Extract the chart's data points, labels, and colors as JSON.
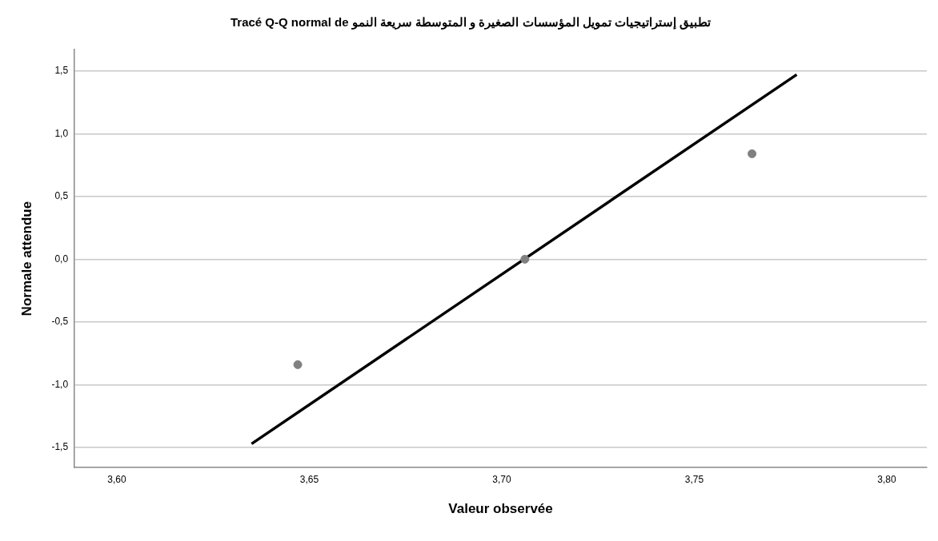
{
  "chart_data": {
    "type": "scatter",
    "title": "Tracé Q-Q normal de تطبيق إستراتيجيات تمويل المؤسسات الصغيرة و المتوسطة سريعة النمو",
    "xlabel": "Valeur observée",
    "ylabel": "Normale attendue",
    "series": [
      {
        "color": "#808080",
        "marker": "circle",
        "x": [
          3.647,
          3.706,
          3.765
        ],
        "values": [
          -0.84,
          0,
          0.84
        ]
      },
      {
        "type": "line",
        "color": "#000000",
        "x": [
          3.635,
          3.7766
        ],
        "values": [
          -1.47,
          1.47
        ]
      }
    ],
    "xlim": [
      3.589,
      3.8104
    ],
    "xticks": [
      {
        "value": 3.6,
        "label": "3,60"
      },
      {
        "value": 3.65,
        "label": "3,65"
      },
      {
        "value": 3.7,
        "label": "3,70"
      },
      {
        "value": 3.75,
        "label": "3,75"
      },
      {
        "value": 3.8,
        "label": "3,80"
      }
    ],
    "ylim": [
      -1.66,
      1.67
    ],
    "yticks": [
      {
        "value": -1.5,
        "label": "-1,5"
      },
      {
        "value": -1,
        "label": "-1,0"
      },
      {
        "value": -0.5,
        "label": "-0,5"
      },
      {
        "value": 0,
        "label": "0,0"
      },
      {
        "value": 0.5,
        "label": "0,5"
      },
      {
        "value": 1,
        "label": "1,0"
      },
      {
        "value": 1.5,
        "label": "1,5"
      }
    ],
    "grid": "y",
    "legend": false,
    "line_style": "solid"
  }
}
